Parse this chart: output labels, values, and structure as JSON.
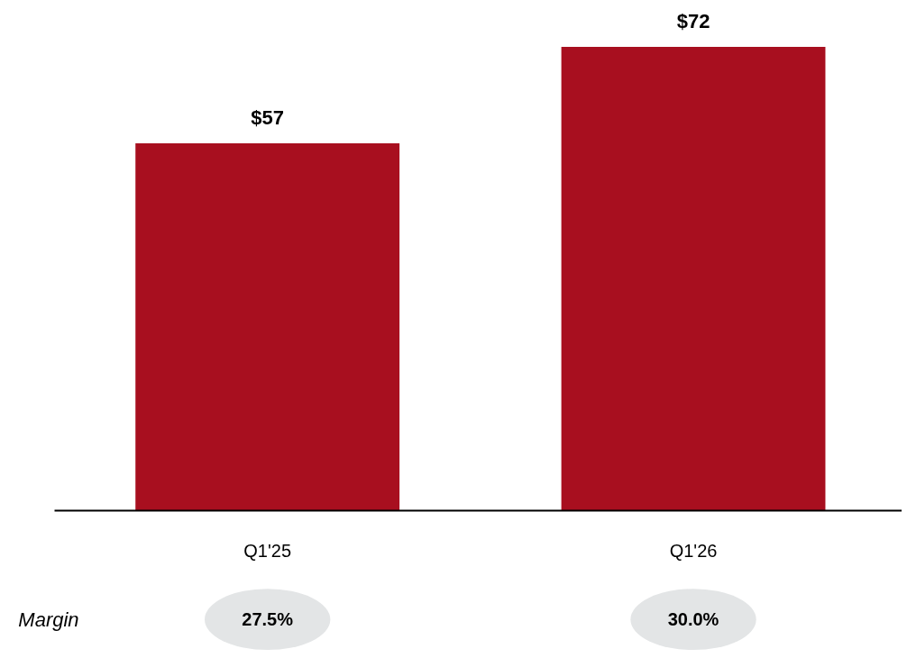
{
  "chart_data": {
    "type": "bar",
    "categories": [
      "Q1'25",
      "Q1'26"
    ],
    "values": [
      57,
      72
    ],
    "color": "#a80f1f",
    "value_labels": [
      "$57",
      "$72"
    ],
    "tick_labels": "x",
    "annotations": [
      "Margin",
      "27.5%",
      "30.0%"
    ]
  }
}
